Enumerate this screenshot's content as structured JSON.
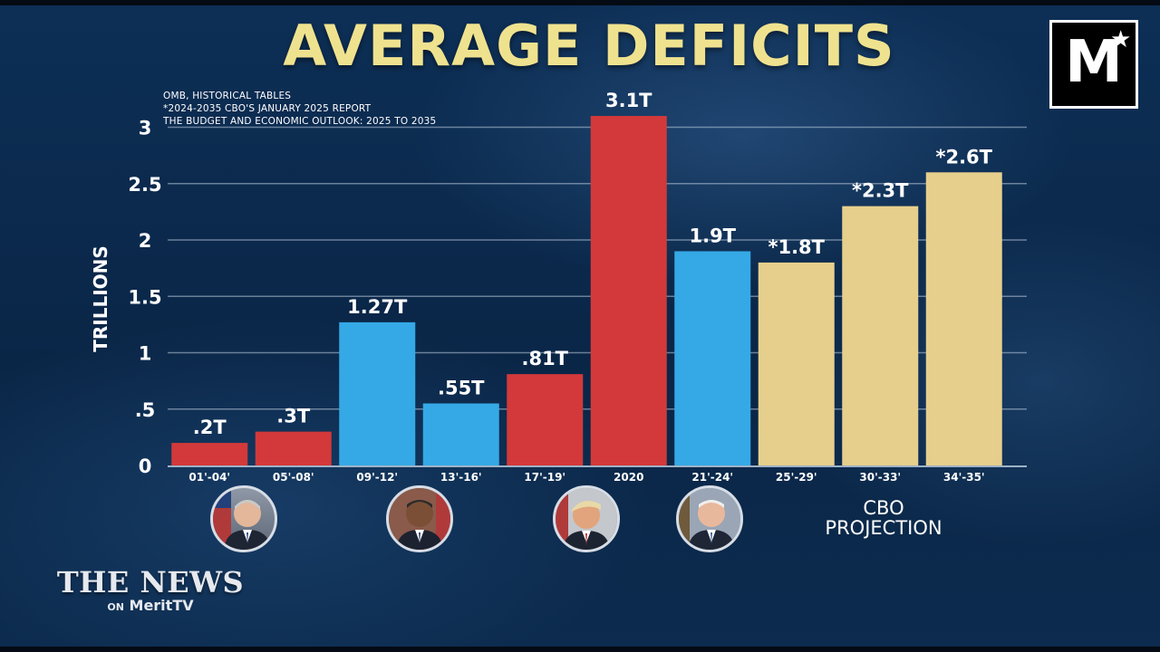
{
  "title": "AVERAGE DEFICITS",
  "sources": [
    "OMB, HISTORICAL TABLES",
    "*2024-2035 CBO'S JANUARY 2025 REPORT",
    "THE BUDGET AND ECONOMIC OUTLOOK: 2025 TO 2035"
  ],
  "chart_data": {
    "type": "bar",
    "title": "AVERAGE DEFICITS",
    "ylabel": "TRILLIONS",
    "xlabel": "",
    "ylim": [
      0,
      3.1
    ],
    "yticks": [
      0,
      0.5,
      1,
      1.5,
      2,
      2.5,
      3
    ],
    "ytick_labels": [
      "0",
      ".5",
      "1",
      "1.5",
      "2",
      "2.5",
      "3"
    ],
    "grid": true,
    "categories": [
      "01'-04'",
      "05'-08'",
      "09'-12'",
      "13'-16'",
      "17'-19'",
      "2020",
      "21'-24'",
      "25'-29'",
      "30'-33'",
      "34'-35'"
    ],
    "values": [
      0.2,
      0.3,
      1.27,
      0.55,
      0.81,
      3.1,
      1.9,
      1.8,
      2.3,
      2.6
    ],
    "data_labels": [
      ".2T",
      ".3T",
      "1.27T",
      ".55T",
      ".81T",
      "3.1T",
      "1.9T",
      "*1.8T",
      "*2.3T",
      "*2.6T"
    ],
    "bar_colors": [
      "#d3393a",
      "#d3393a",
      "#35a9e6",
      "#35a9e6",
      "#d3393a",
      "#d3393a",
      "#35a9e6",
      "#e6cf8c",
      "#e6cf8c",
      "#e6cf8c"
    ]
  },
  "annotation": {
    "cbo_line1": "CBO",
    "cbo_line2": "PROJECTION"
  },
  "portraits": [
    {
      "name": "bush-portrait-icon",
      "under": [
        "01'-04'",
        "05'-08'"
      ]
    },
    {
      "name": "obama-portrait-icon",
      "under": [
        "09'-12'",
        "13'-16'"
      ]
    },
    {
      "name": "trump-portrait-icon",
      "under": [
        "17'-19'",
        "2020"
      ]
    },
    {
      "name": "biden-portrait-icon",
      "under": [
        "21'-24'"
      ]
    }
  ],
  "logo": {
    "letter": "M",
    "star": "★"
  },
  "network": {
    "line1": "THE NEWS",
    "on": "ON",
    "brand": "MeritTV"
  }
}
